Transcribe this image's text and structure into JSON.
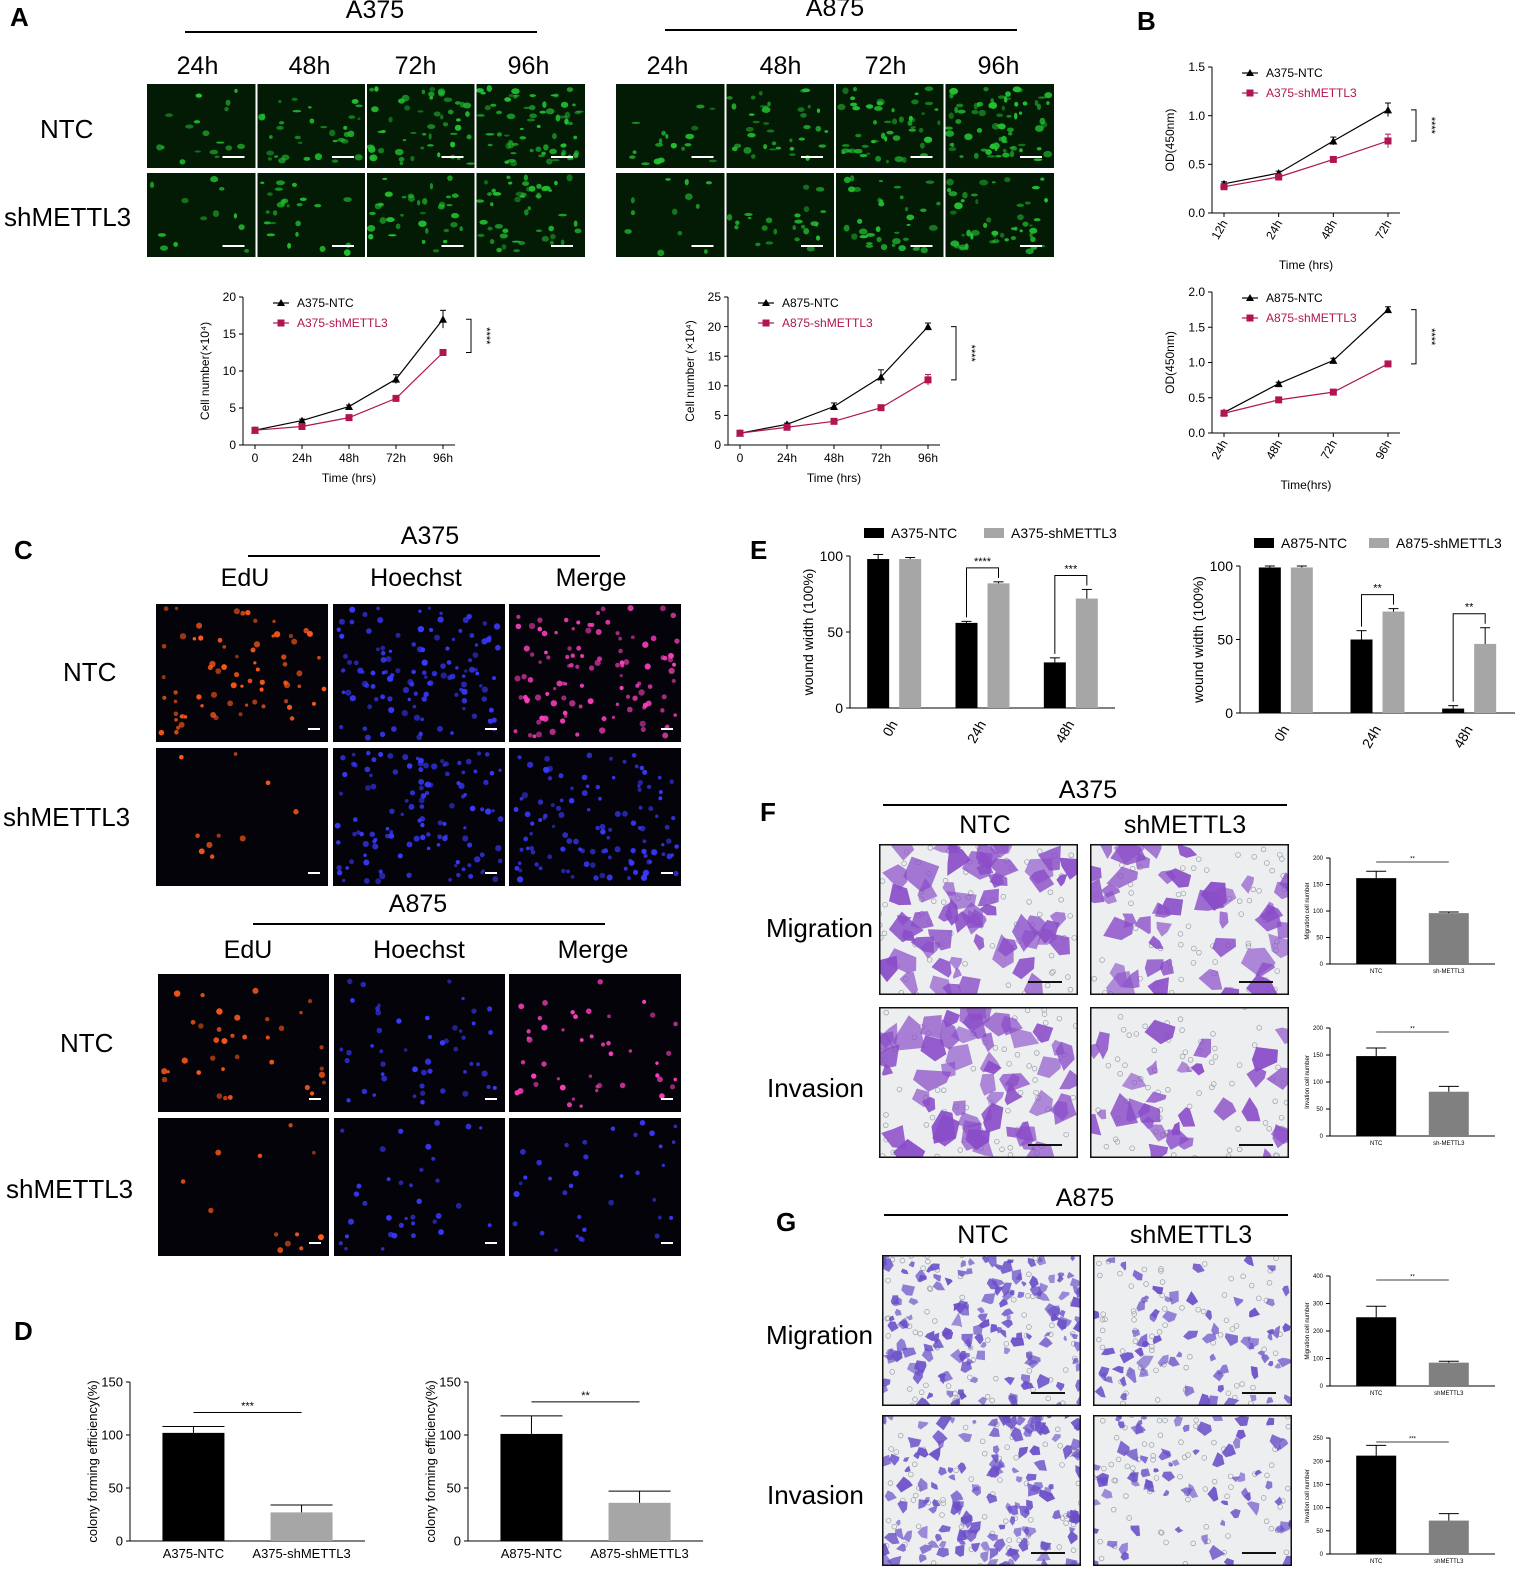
{
  "figure": {
    "panels": {
      "A": {
        "label": "A",
        "lines": [
          "A375",
          "A875"
        ],
        "timepoints": [
          "24h",
          "48h",
          "72h",
          "96h"
        ],
        "rows": [
          "NTC",
          "shMETTL3"
        ]
      },
      "B": {
        "label": "B"
      },
      "C": {
        "label": "C",
        "blocks": [
          {
            "line": "A375",
            "channels": [
              "EdU",
              "Hoechst",
              "Merge"
            ],
            "rows": [
              "NTC",
              "shMETTL3"
            ]
          },
          {
            "line": "A875",
            "channels": [
              "EdU",
              "Hoechst",
              "Merge"
            ],
            "rows": [
              "NTC",
              "shMETTL3"
            ]
          }
        ]
      },
      "D": {
        "label": "D"
      },
      "E": {
        "label": "E"
      },
      "F": {
        "label": "F",
        "line": "A375",
        "columns": [
          "NTC",
          "shMETTL3"
        ],
        "rows": [
          "Migration",
          "Invasion"
        ]
      },
      "G": {
        "label": "G",
        "line": "A875",
        "columns": [
          "NTC",
          "shMETTL3"
        ],
        "rows": [
          "Migration",
          "Invasion"
        ]
      }
    }
  },
  "micrographs": {
    "gfp": "#22c231",
    "edu": "#ff5a1a",
    "hoechst": "#3a3aff",
    "merge": "#ff40c0",
    "crystal_violet_a375": "#8a4dc8",
    "crystal_violet_a875": "#6a4fc8"
  },
  "chart_data": [
    {
      "id": "A-A375-count",
      "type": "line",
      "x": [
        "0",
        "24h",
        "48h",
        "72h",
        "96h"
      ],
      "xlabel": "Time (hrs)",
      "ylabel": "Cell number(×10⁴)",
      "ylim": [
        0,
        20
      ],
      "yticks": [
        "0",
        "5",
        "10",
        "15",
        "20"
      ],
      "series": [
        {
          "name": "A375-NTC",
          "color": "#000000",
          "marker": "triangle",
          "values": [
            2.0,
            3.3,
            5.2,
            8.9,
            17.0
          ],
          "err": [
            0.1,
            0.2,
            0.2,
            0.6,
            1.2
          ]
        },
        {
          "name": "A375-shMETTL3",
          "color": "#b01451",
          "marker": "square",
          "values": [
            2.0,
            2.5,
            3.7,
            6.3,
            12.5
          ],
          "err": [
            0.1,
            0.2,
            0.2,
            0.3,
            0.4
          ]
        }
      ],
      "annotation": "****",
      "legend": "top-left"
    },
    {
      "id": "A-A875-count",
      "type": "line",
      "x": [
        "0",
        "24h",
        "48h",
        "72h",
        "96h"
      ],
      "xlabel": "Time (hrs)",
      "ylabel": "Cell number (×10⁴)",
      "ylim": [
        0,
        25
      ],
      "yticks": [
        "0",
        "5",
        "10",
        "15",
        "20",
        "25"
      ],
      "series": [
        {
          "name": "A875-NTC",
          "color": "#000000",
          "marker": "triangle",
          "values": [
            2.0,
            3.5,
            6.5,
            11.5,
            20.0
          ],
          "err": [
            0.1,
            0.2,
            0.6,
            1.2,
            0.6
          ]
        },
        {
          "name": "A875-shMETTL3",
          "color": "#b01451",
          "marker": "square",
          "values": [
            2.0,
            3.0,
            4.0,
            6.3,
            11.0
          ],
          "err": [
            0.1,
            0.2,
            0.2,
            0.3,
            0.9
          ]
        }
      ],
      "annotation": "****",
      "legend": "top-left"
    },
    {
      "id": "B-A375-od",
      "type": "line",
      "x": [
        "12h",
        "24h",
        "48h",
        "72h"
      ],
      "xlabel": "Time (hrs)",
      "ylabel": "OD(450nm)",
      "ylim": [
        0,
        1.5
      ],
      "yticks": [
        "0.0",
        "0.5",
        "1.0",
        "1.5"
      ],
      "series": [
        {
          "name": "A375-NTC",
          "color": "#000000",
          "marker": "triangle",
          "values": [
            0.3,
            0.41,
            0.74,
            1.06
          ],
          "err": [
            0.02,
            0.02,
            0.04,
            0.07
          ]
        },
        {
          "name": "A375-shMETTL3",
          "color": "#b01451",
          "marker": "square",
          "values": [
            0.27,
            0.37,
            0.55,
            0.74
          ],
          "err": [
            0.02,
            0.02,
            0.02,
            0.07
          ]
        }
      ],
      "annotation": "****",
      "legend": "top-left"
    },
    {
      "id": "B-A875-od",
      "type": "line",
      "x": [
        "24h",
        "48h",
        "72h",
        "96h"
      ],
      "xlabel": "Time(hrs)",
      "ylabel": "OD(450nm)",
      "ylim": [
        0,
        2.0
      ],
      "yticks": [
        "0.0",
        "0.5",
        "1.0",
        "1.5",
        "2.0"
      ],
      "series": [
        {
          "name": "A875-NTC",
          "color": "#000000",
          "marker": "triangle",
          "values": [
            0.29,
            0.7,
            1.03,
            1.75
          ],
          "err": [
            0.01,
            0.02,
            0.03,
            0.04
          ]
        },
        {
          "name": "A875-shMETTL3",
          "color": "#b01451",
          "marker": "square",
          "values": [
            0.28,
            0.47,
            0.58,
            0.98
          ],
          "err": [
            0.01,
            0.02,
            0.02,
            0.04
          ]
        }
      ],
      "annotation": "****",
      "legend": "top-left"
    },
    {
      "id": "D-A375-colony",
      "type": "bar",
      "categories": [
        "A375-NTC",
        "A375-shMETTL3"
      ],
      "values": [
        102,
        27
      ],
      "err": [
        6,
        7
      ],
      "colors": [
        "#000000",
        "#a6a6a6"
      ],
      "ylabel": "colony forming efficiency(%)",
      "ylim": [
        0,
        150
      ],
      "yticks": [
        "0",
        "50",
        "100",
        "150"
      ],
      "annotation": "***"
    },
    {
      "id": "D-A875-colony",
      "type": "bar",
      "categories": [
        "A875-NTC",
        "A875-shMETTL3"
      ],
      "values": [
        101,
        36
      ],
      "err": [
        17,
        11
      ],
      "colors": [
        "#000000",
        "#a6a6a6"
      ],
      "ylabel": "colony forming efficiency(%)",
      "ylim": [
        0,
        150
      ],
      "yticks": [
        "0",
        "50",
        "100",
        "150"
      ],
      "annotation": "**"
    },
    {
      "id": "E-A375-wound",
      "type": "bar",
      "categories": [
        "0h",
        "24h",
        "48h"
      ],
      "ylabel": "wound width (100%)",
      "ylim": [
        0,
        100
      ],
      "yticks": [
        "0",
        "50",
        "100"
      ],
      "series": [
        {
          "name": "A375-NTC",
          "color": "#000000",
          "values": [
            98,
            56,
            30
          ],
          "err": [
            3,
            1,
            3
          ]
        },
        {
          "name": "A375-shMETTL3",
          "color": "#a6a6a6",
          "values": [
            98,
            82,
            72
          ],
          "err": [
            1,
            1,
            6
          ]
        }
      ],
      "annotations": [
        "",
        "****",
        "***"
      ],
      "legend": "top"
    },
    {
      "id": "E-A875-wound",
      "type": "bar",
      "categories": [
        "0h",
        "24h",
        "48h"
      ],
      "ylabel": "wound width (100%)",
      "ylim": [
        0,
        100
      ],
      "yticks": [
        "0",
        "50",
        "100"
      ],
      "series": [
        {
          "name": "A875-NTC",
          "color": "#000000",
          "values": [
            99,
            50,
            3
          ],
          "err": [
            1,
            6,
            2
          ]
        },
        {
          "name": "A875-shMETTL3",
          "color": "#a6a6a6",
          "values": [
            99,
            69,
            47
          ],
          "err": [
            1,
            2,
            11
          ]
        }
      ],
      "annotations": [
        "",
        "**",
        "**"
      ],
      "legend": "top"
    },
    {
      "id": "F-migration",
      "type": "bar",
      "categories": [
        "NTC",
        "sh-METTL3"
      ],
      "values": [
        162,
        96
      ],
      "err": [
        13,
        2
      ],
      "colors": [
        "#000000",
        "#808080"
      ],
      "ylabel": "Migration cell number",
      "ylim": [
        0,
        200
      ],
      "yticks": [
        "0",
        "50",
        "100",
        "150",
        "200"
      ],
      "annotation": "**"
    },
    {
      "id": "F-invasion",
      "type": "bar",
      "categories": [
        "NTC",
        "sh-METTL3"
      ],
      "values": [
        148,
        82
      ],
      "err": [
        15,
        10
      ],
      "colors": [
        "#000000",
        "#808080"
      ],
      "ylabel": "Invation cell number",
      "ylim": [
        0,
        200
      ],
      "yticks": [
        "0",
        "50",
        "100",
        "150",
        "200"
      ],
      "annotation": "**"
    },
    {
      "id": "G-migration",
      "type": "bar",
      "categories": [
        "NTC",
        "shMETTL3"
      ],
      "values": [
        250,
        85
      ],
      "err": [
        40,
        5
      ],
      "colors": [
        "#000000",
        "#808080"
      ],
      "ylabel": "Migration cell number",
      "ylim": [
        0,
        400
      ],
      "yticks": [
        "0",
        "100",
        "200",
        "300",
        "400"
      ],
      "annotation": "**"
    },
    {
      "id": "G-invasion",
      "type": "bar",
      "categories": [
        "NTC",
        "shMETTL3"
      ],
      "values": [
        212,
        72
      ],
      "err": [
        22,
        15
      ],
      "colors": [
        "#000000",
        "#808080"
      ],
      "ylabel": "Invation cell number",
      "ylim": [
        0,
        250
      ],
      "yticks": [
        "0",
        "50",
        "100",
        "150",
        "200",
        "250"
      ],
      "annotation": "***"
    }
  ]
}
